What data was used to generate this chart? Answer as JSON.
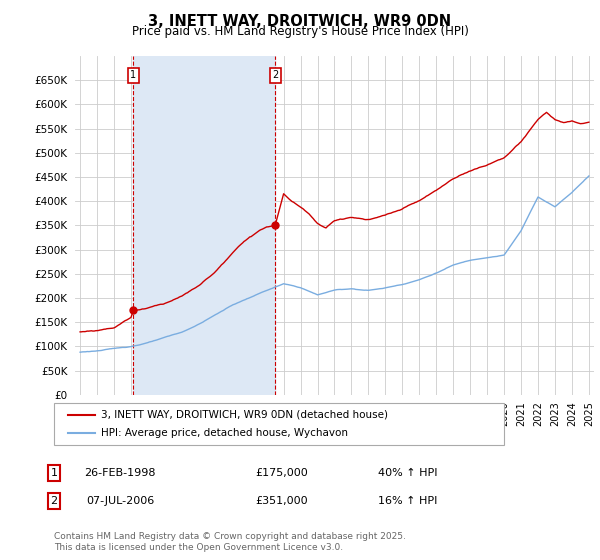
{
  "title": "3, INETT WAY, DROITWICH, WR9 0DN",
  "subtitle": "Price paid vs. HM Land Registry's House Price Index (HPI)",
  "legend_label_red": "3, INETT WAY, DROITWICH, WR9 0DN (detached house)",
  "legend_label_blue": "HPI: Average price, detached house, Wychavon",
  "annotation1_label": "1",
  "annotation1_date": "26-FEB-1998",
  "annotation1_price": "£175,000",
  "annotation1_hpi": "40% ↑ HPI",
  "annotation1_year": 1998.13,
  "annotation1_value": 175000,
  "annotation2_label": "2",
  "annotation2_date": "07-JUL-2006",
  "annotation2_price": "£351,000",
  "annotation2_hpi": "16% ↑ HPI",
  "annotation2_year": 2006.5,
  "annotation2_value": 351000,
  "footer": "Contains HM Land Registry data © Crown copyright and database right 2025.\nThis data is licensed under the Open Government Licence v3.0.",
  "ylim": [
    0,
    700000
  ],
  "yticks": [
    0,
    50000,
    100000,
    150000,
    200000,
    250000,
    300000,
    350000,
    400000,
    450000,
    500000,
    550000,
    600000,
    650000
  ],
  "xlim_min": 1994.7,
  "xlim_max": 2025.3,
  "red_color": "#cc0000",
  "blue_color": "#7aade0",
  "shade_color": "#dde8f5",
  "grid_color": "#cccccc",
  "background_color": "#ffffff",
  "hpi_anchors_year": [
    1995,
    1996,
    1997,
    1998,
    1999,
    2000,
    2001,
    2002,
    2003,
    2004,
    2005,
    2006,
    2007,
    2008,
    2009,
    2010,
    2011,
    2012,
    2013,
    2014,
    2015,
    2016,
    2017,
    2018,
    2019,
    2020,
    2021,
    2022,
    2023,
    2024,
    2025
  ],
  "hpi_anchors_val": [
    88000,
    91000,
    95000,
    100000,
    108000,
    118000,
    128000,
    145000,
    165000,
    185000,
    200000,
    215000,
    228000,
    220000,
    205000,
    215000,
    218000,
    215000,
    220000,
    228000,
    238000,
    252000,
    268000,
    278000,
    285000,
    290000,
    340000,
    410000,
    390000,
    420000,
    455000
  ],
  "prop_anchors_year": [
    1995,
    1996,
    1997,
    1998.0,
    1998.13,
    1999,
    2000,
    2001,
    2002,
    2003,
    2004,
    2005,
    2006.0,
    2006.5,
    2007.0,
    2007.5,
    2008,
    2008.5,
    2009,
    2009.5,
    2010,
    2011,
    2012,
    2013,
    2014,
    2015,
    2016,
    2017,
    2018,
    2019,
    2020,
    2021,
    2022.0,
    2022.5,
    2023,
    2023.5,
    2024,
    2024.5,
    2025
  ],
  "prop_anchors_val": [
    130000,
    133000,
    140000,
    162000,
    175000,
    182000,
    192000,
    208000,
    228000,
    258000,
    295000,
    328000,
    348000,
    351000,
    415000,
    400000,
    388000,
    375000,
    355000,
    345000,
    360000,
    368000,
    362000,
    370000,
    382000,
    398000,
    418000,
    442000,
    460000,
    472000,
    488000,
    520000,
    565000,
    580000,
    565000,
    558000,
    560000,
    555000,
    558000
  ]
}
